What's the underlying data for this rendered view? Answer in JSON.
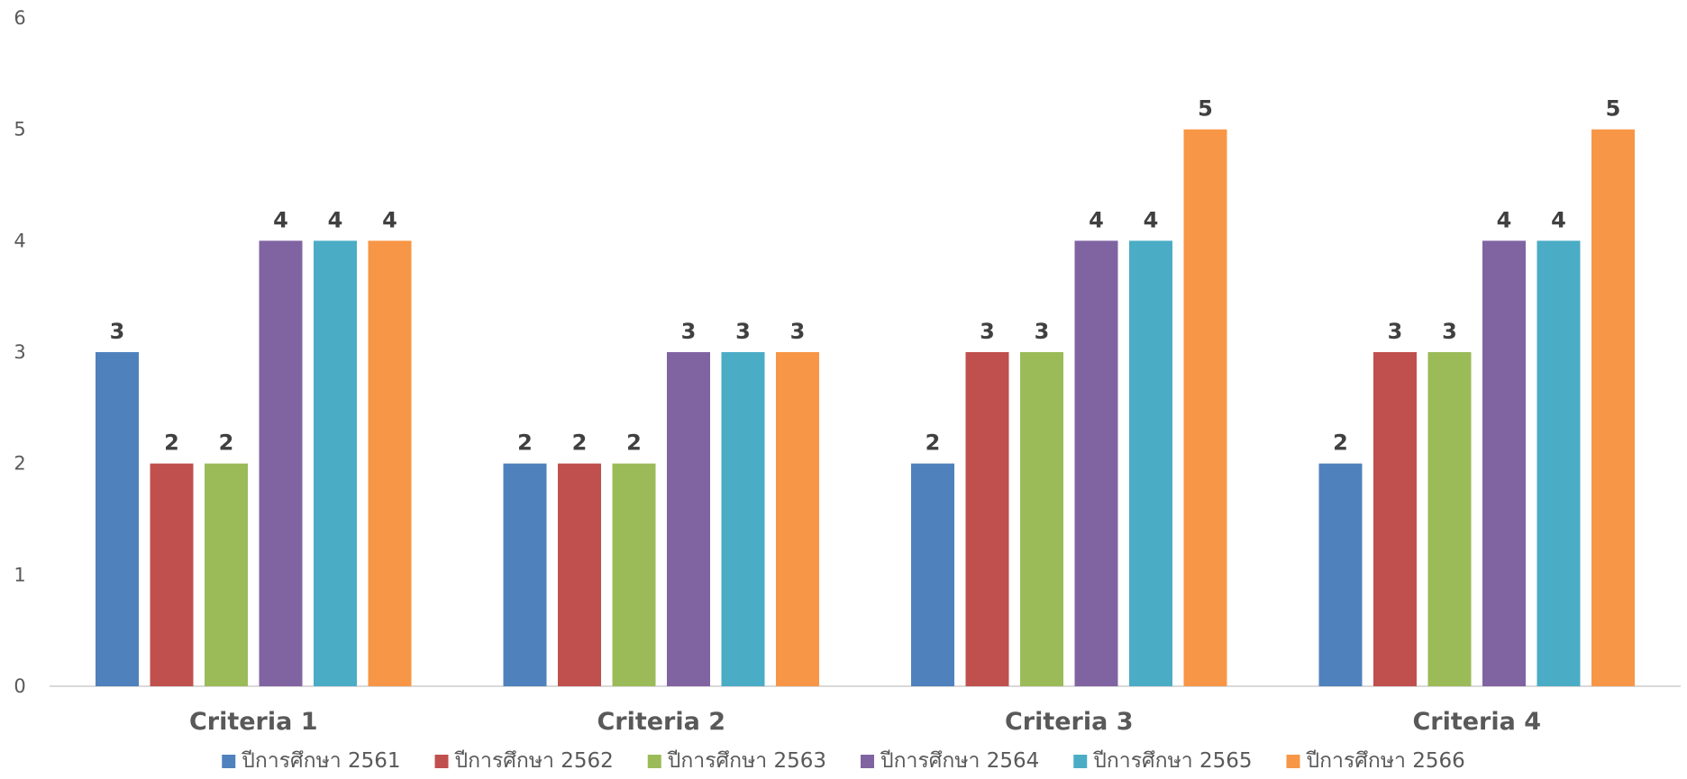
{
  "chart_data": {
    "type": "bar",
    "categories": [
      "Criteria 1",
      "Criteria 2",
      "Criteria 3",
      "Criteria 4"
    ],
    "series": [
      {
        "name": "ปีการศึกษา 2561",
        "color": "#4F81BD",
        "values": [
          3,
          2,
          2,
          2
        ]
      },
      {
        "name": "ปีการศึกษา 2562",
        "color": "#C0504D",
        "values": [
          2,
          2,
          3,
          3
        ]
      },
      {
        "name": "ปีการศึกษา 2563",
        "color": "#9BBB59",
        "values": [
          2,
          2,
          3,
          3
        ]
      },
      {
        "name": "ปีการศึกษา 2564",
        "color": "#8064A2",
        "values": [
          4,
          3,
          4,
          4
        ]
      },
      {
        "name": "ปีการศึกษา 2565",
        "color": "#4BACC6",
        "values": [
          4,
          3,
          4,
          4
        ]
      },
      {
        "name": "ปีการศึกษา 2566",
        "color": "#F79646",
        "values": [
          4,
          3,
          5,
          5
        ]
      }
    ],
    "ylim": [
      0,
      6
    ],
    "yticks": [
      0,
      1,
      2,
      3,
      4,
      5,
      6
    ],
    "grid": false,
    "legend_position": "bottom",
    "data_labels": true
  }
}
